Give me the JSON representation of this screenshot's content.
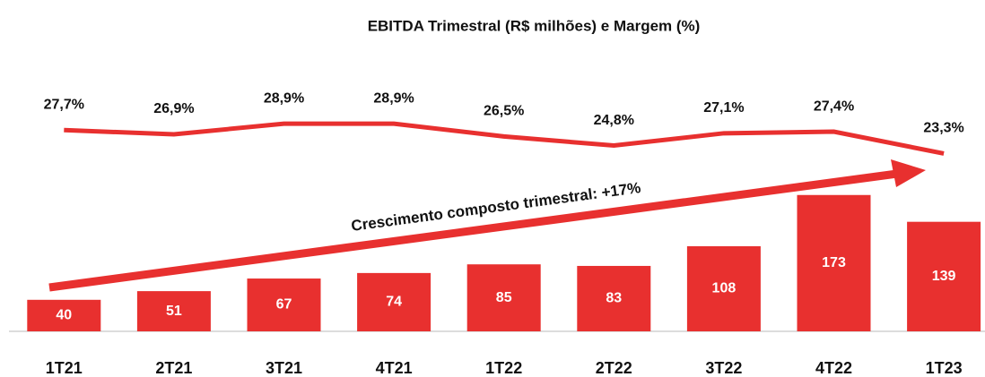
{
  "chart_data": {
    "type": "bar",
    "title": "EBITDA Trimestral (R$ milhões) e Margem (%)",
    "categories": [
      "1T21",
      "2T21",
      "3T21",
      "4T21",
      "1T22",
      "2T22",
      "3T22",
      "4T22",
      "1T23"
    ],
    "series": [
      {
        "name": "EBITDA",
        "type": "bar",
        "color": "#e8302f",
        "values": [
          40,
          51,
          67,
          74,
          85,
          83,
          108,
          173,
          139
        ]
      },
      {
        "name": "Margem",
        "type": "line",
        "axis": "y2",
        "color": "#e8302f",
        "values": [
          27.7,
          26.9,
          28.9,
          28.9,
          26.5,
          24.8,
          27.1,
          27.4,
          23.3
        ],
        "value_labels": [
          "27,7%",
          "26,9%",
          "28,9%",
          "28,9%",
          "26,5%",
          "24,8%",
          "27,1%",
          "27,4%",
          "23,3%"
        ]
      }
    ],
    "annotation": "Crescimento composto trimestral: +17%",
    "ylim": [
      0,
      200
    ],
    "y2lim": [
      -10,
      42
    ]
  }
}
